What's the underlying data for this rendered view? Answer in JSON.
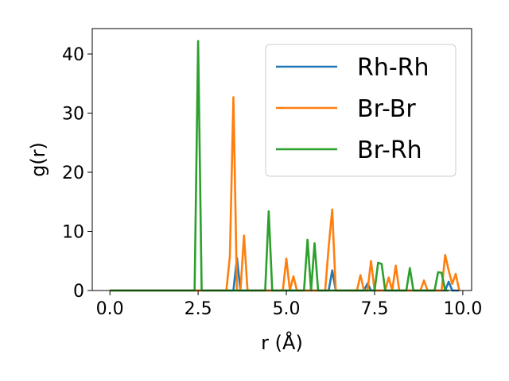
{
  "chart_data": {
    "type": "line",
    "xlabel": "r (Å)",
    "ylabel": "g(r)",
    "xlim": [
      -0.5,
      10.25
    ],
    "ylim": [
      0,
      44.3
    ],
    "xticks": [
      0.0,
      2.5,
      5.0,
      7.5,
      10.0
    ],
    "xtick_labels": [
      "0.0",
      "2.5",
      "5.0",
      "7.5",
      "10.0"
    ],
    "yticks": [
      0,
      10,
      20,
      30,
      40
    ],
    "ytick_labels": [
      "0",
      "10",
      "20",
      "30",
      "40"
    ],
    "grid": false,
    "legend_position": "upper right",
    "series": [
      {
        "name": "Rh-Rh",
        "color": "#1f77b4",
        "x": [
          0.0,
          3.5,
          3.6,
          3.7,
          6.2,
          6.3,
          6.4,
          7.2,
          7.3,
          7.4,
          9.5,
          9.6,
          9.7,
          9.9
        ],
        "y": [
          0,
          0,
          5.5,
          0,
          0,
          3.4,
          0,
          0,
          1.2,
          0,
          0,
          1.5,
          0,
          0
        ]
      },
      {
        "name": "Br-Br",
        "color": "#ff7f0e",
        "x": [
          0.0,
          3.3,
          3.4,
          3.5,
          3.6,
          3.7,
          3.8,
          3.9,
          4.9,
          5.0,
          5.1,
          5.2,
          5.3,
          6.1,
          6.2,
          6.3,
          6.4,
          7.0,
          7.1,
          7.2,
          7.3,
          7.4,
          7.5,
          7.6,
          7.8,
          7.9,
          8.0,
          8.1,
          8.2,
          8.8,
          8.9,
          9.0,
          9.4,
          9.5,
          9.6,
          9.7,
          9.8,
          9.9
        ],
        "y": [
          0,
          0,
          5.8,
          32.7,
          0,
          0,
          9.3,
          0,
          0,
          5.4,
          0,
          2.4,
          0,
          0,
          7.4,
          13.7,
          0,
          0,
          2.6,
          0,
          0,
          5.0,
          0,
          0,
          0,
          2.2,
          0,
          4.2,
          0,
          0,
          1.7,
          0,
          0,
          6.0,
          3.4,
          1.1,
          2.8,
          0
        ]
      },
      {
        "name": "Br-Rh",
        "color": "#2ca02c",
        "x": [
          0.0,
          2.4,
          2.5,
          2.6,
          4.4,
          4.5,
          4.6,
          5.5,
          5.6,
          5.7,
          5.8,
          5.9,
          7.5,
          7.6,
          7.7,
          7.8,
          8.4,
          8.5,
          8.6,
          9.2,
          9.3,
          9.4,
          9.5,
          9.6
        ],
        "y": [
          0,
          0,
          42.2,
          0,
          0,
          13.4,
          0,
          0,
          8.6,
          0,
          8.0,
          0,
          0,
          4.7,
          4.5,
          0,
          0,
          3.8,
          0,
          0,
          3.1,
          3.0,
          0,
          0
        ]
      }
    ]
  }
}
